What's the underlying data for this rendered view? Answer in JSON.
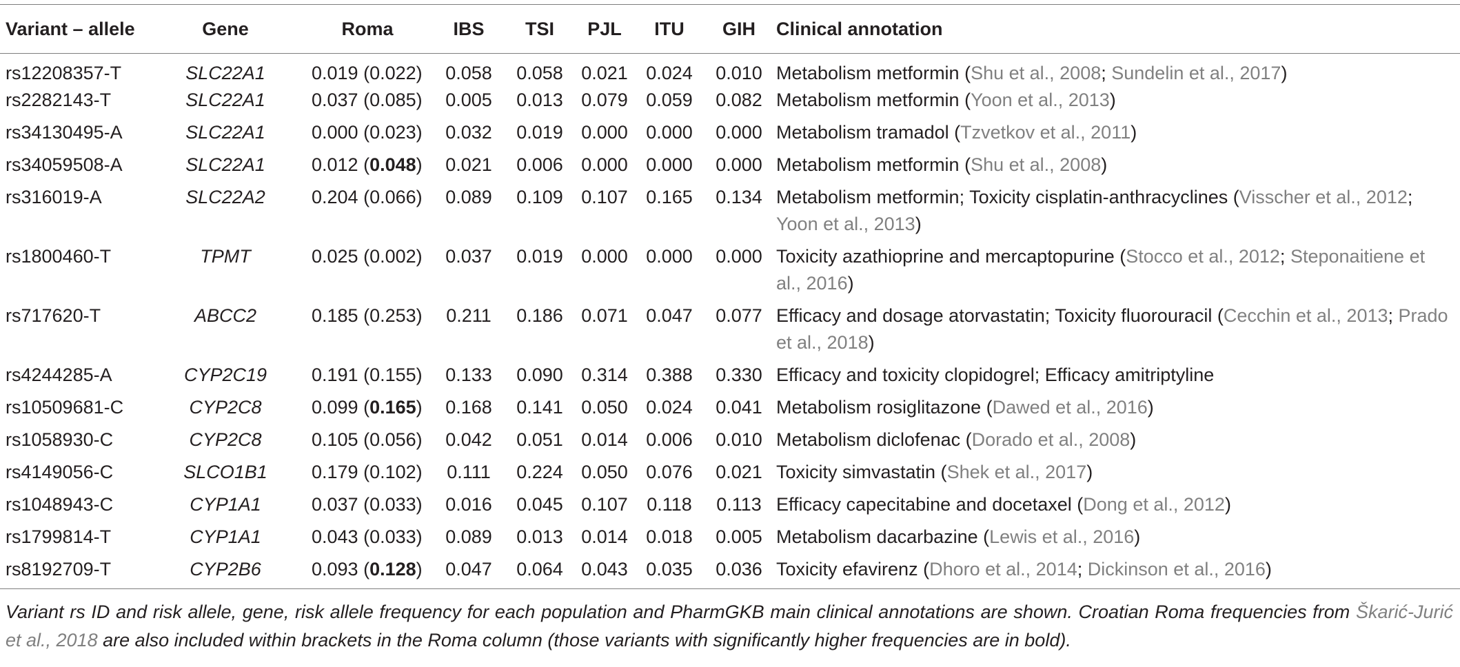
{
  "headers": {
    "variant": "Variant – allele",
    "gene": "Gene",
    "roma": "Roma",
    "ibs": "IBS",
    "tsi": "TSI",
    "pjl": "PJL",
    "itu": "ITU",
    "gih": "GIH",
    "annotation": "Clinical annotation"
  },
  "rows": [
    {
      "variant": "rs12208357-T",
      "gene": "SLC22A1",
      "roma": "0.019",
      "roma_cro": "0.022",
      "roma_cro_bold": false,
      "ibs": "0.058",
      "tsi": "0.058",
      "pjl": "0.021",
      "itu": "0.024",
      "gih": "0.010",
      "annotation": [
        {
          "t": "Metabolism metformin ("
        },
        {
          "t": "Shu et al., 2008",
          "cite": true
        },
        {
          "t": "; "
        },
        {
          "t": "Sundelin et al., 2017",
          "cite": true
        },
        {
          "t": ")"
        }
      ]
    },
    {
      "variant": "rs2282143-T",
      "gene": "SLC22A1",
      "roma": "0.037",
      "roma_cro": "0.085",
      "roma_cro_bold": false,
      "ibs": "0.005",
      "tsi": "0.013",
      "pjl": "0.079",
      "itu": "0.059",
      "gih": "0.082",
      "annotation": [
        {
          "t": "Metabolism metformin ("
        },
        {
          "t": "Yoon et al., 2013",
          "cite": true
        },
        {
          "t": ")"
        }
      ]
    },
    {
      "variant": "rs34130495-A",
      "gene": "SLC22A1",
      "roma": "0.000",
      "roma_cro": "0.023",
      "roma_cro_bold": false,
      "ibs": "0.032",
      "tsi": "0.019",
      "pjl": "0.000",
      "itu": "0.000",
      "gih": "0.000",
      "annotation": [
        {
          "t": "Metabolism tramadol ("
        },
        {
          "t": "Tzvetkov et al., 2011",
          "cite": true
        },
        {
          "t": ")"
        }
      ]
    },
    {
      "variant": "rs34059508-A",
      "gene": "SLC22A1",
      "roma": "0.012",
      "roma_cro": "0.048",
      "roma_cro_bold": true,
      "ibs": "0.021",
      "tsi": "0.006",
      "pjl": "0.000",
      "itu": "0.000",
      "gih": "0.000",
      "annotation": [
        {
          "t": "Metabolism metformin ("
        },
        {
          "t": "Shu et al., 2008",
          "cite": true
        },
        {
          "t": ")"
        }
      ]
    },
    {
      "variant": "rs316019-A",
      "gene": "SLC22A2",
      "roma": "0.204",
      "roma_cro": "0.066",
      "roma_cro_bold": false,
      "ibs": "0.089",
      "tsi": "0.109",
      "pjl": "0.107",
      "itu": "0.165",
      "gih": "0.134",
      "two_line": true,
      "annotation": [
        {
          "t": "Metabolism metformin; Toxicity cisplatin-anthracyclines ("
        },
        {
          "t": "Visscher et al., 2012",
          "cite": true
        },
        {
          "t": "; "
        },
        {
          "t": "Yoon et al., 2013",
          "cite": true
        },
        {
          "t": ")"
        }
      ]
    },
    {
      "variant": "rs1800460-T",
      "gene": "TPMT",
      "roma": "0.025",
      "roma_cro": "0.002",
      "roma_cro_bold": false,
      "ibs": "0.037",
      "tsi": "0.019",
      "pjl": "0.000",
      "itu": "0.000",
      "gih": "0.000",
      "two_line": true,
      "annotation": [
        {
          "t": "Toxicity azathioprine and mercaptopurine ("
        },
        {
          "t": "Stocco et al., 2012",
          "cite": true
        },
        {
          "t": "; "
        },
        {
          "t": "Steponaitiene et al., 2016",
          "cite": true
        },
        {
          "t": ")"
        }
      ]
    },
    {
      "variant": "rs717620-T",
      "gene": "ABCC2",
      "roma": "0.185",
      "roma_cro": "0.253",
      "roma_cro_bold": false,
      "ibs": "0.211",
      "tsi": "0.186",
      "pjl": "0.071",
      "itu": "0.047",
      "gih": "0.077",
      "two_line": true,
      "annotation": [
        {
          "t": "Efficacy and dosage atorvastatin; Toxicity fluorouracil ("
        },
        {
          "t": "Cecchin et al., 2013",
          "cite": true
        },
        {
          "t": "; "
        },
        {
          "t": "Prado et al., 2018",
          "cite": true
        },
        {
          "t": ")"
        }
      ]
    },
    {
      "variant": "rs4244285-A",
      "gene": "CYP2C19",
      "roma": "0.191",
      "roma_cro": "0.155",
      "roma_cro_bold": false,
      "ibs": "0.133",
      "tsi": "0.090",
      "pjl": "0.314",
      "itu": "0.388",
      "gih": "0.330",
      "annotation": [
        {
          "t": "Efficacy and toxicity clopidogrel; Efficacy amitriptyline"
        }
      ]
    },
    {
      "variant": "rs10509681-C",
      "gene": "CYP2C8",
      "roma": "0.099",
      "roma_cro": "0.165",
      "roma_cro_bold": true,
      "ibs": "0.168",
      "tsi": "0.141",
      "pjl": "0.050",
      "itu": "0.024",
      "gih": "0.041",
      "annotation": [
        {
          "t": "Metabolism rosiglitazone ("
        },
        {
          "t": "Dawed et al., 2016",
          "cite": true
        },
        {
          "t": ")"
        }
      ]
    },
    {
      "variant": "rs1058930-C",
      "gene": "CYP2C8",
      "roma": "0.105",
      "roma_cro": "0.056",
      "roma_cro_bold": false,
      "ibs": "0.042",
      "tsi": "0.051",
      "pjl": "0.014",
      "itu": "0.006",
      "gih": "0.010",
      "annotation": [
        {
          "t": "Metabolism diclofenac ("
        },
        {
          "t": "Dorado et al., 2008",
          "cite": true
        },
        {
          "t": ")"
        }
      ]
    },
    {
      "variant": "rs4149056-C",
      "gene": "SLCO1B1",
      "roma": "0.179",
      "roma_cro": "0.102",
      "roma_cro_bold": false,
      "ibs": "0.111",
      "tsi": "0.224",
      "pjl": "0.050",
      "itu": "0.076",
      "gih": "0.021",
      "annotation": [
        {
          "t": "Toxicity simvastatin ("
        },
        {
          "t": "Shek et al., 2017",
          "cite": true
        },
        {
          "t": ")"
        }
      ]
    },
    {
      "variant": "rs1048943-C",
      "gene": "CYP1A1",
      "roma": "0.037",
      "roma_cro": "0.033",
      "roma_cro_bold": false,
      "ibs": "0.016",
      "tsi": "0.045",
      "pjl": "0.107",
      "itu": "0.118",
      "gih": "0.113",
      "annotation": [
        {
          "t": "Efficacy capecitabine and docetaxel ("
        },
        {
          "t": "Dong et al., 2012",
          "cite": true
        },
        {
          "t": ")"
        }
      ]
    },
    {
      "variant": "rs1799814-T",
      "gene": "CYP1A1",
      "roma": "0.043",
      "roma_cro": "0.033",
      "roma_cro_bold": false,
      "ibs": "0.089",
      "tsi": "0.013",
      "pjl": "0.014",
      "itu": "0.018",
      "gih": "0.005",
      "annotation": [
        {
          "t": "Metabolism dacarbazine ("
        },
        {
          "t": "Lewis et al., 2016",
          "cite": true
        },
        {
          "t": ")"
        }
      ]
    },
    {
      "variant": "rs8192709-T",
      "gene": "CYP2B6",
      "roma": "0.093",
      "roma_cro": "0.128",
      "roma_cro_bold": true,
      "ibs": "0.047",
      "tsi": "0.064",
      "pjl": "0.043",
      "itu": "0.035",
      "gih": "0.036",
      "annotation": [
        {
          "t": "Toxicity efavirenz ("
        },
        {
          "t": "Dhoro et al., 2014",
          "cite": true
        },
        {
          "t": "; "
        },
        {
          "t": "Dickinson et al., 2016",
          "cite": true
        },
        {
          "t": ")"
        }
      ]
    }
  ],
  "caption": [
    {
      "t": "Variant rs ID and risk allele, gene, risk allele frequency for each population and PharmGKB main clinical annotations are shown. Croatian Roma frequencies from "
    },
    {
      "t": "Škarić-Jurić et al., 2018",
      "cite": true
    },
    {
      "t": " are also included within brackets in the Roma column (those variants with significantly higher frequencies are in bold)."
    }
  ]
}
